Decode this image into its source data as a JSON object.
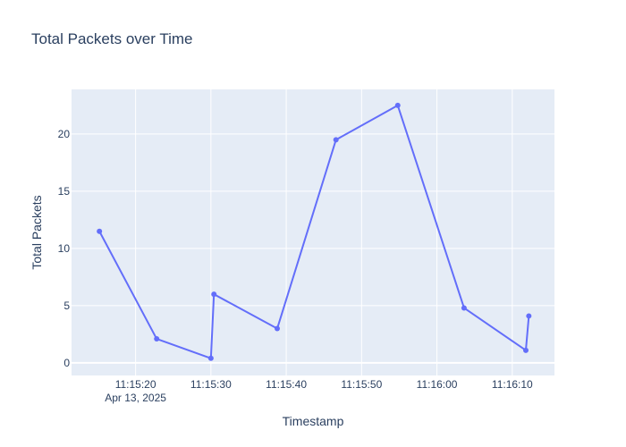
{
  "chart_data": {
    "type": "line",
    "title": "Total Packets over Time",
    "xlabel": "Timestamp",
    "ylabel": "Total Packets",
    "x": [
      "11:15:15.2",
      "11:15:22.8",
      "11:15:30.0",
      "11:15:30.4",
      "11:15:38.8",
      "11:15:46.6",
      "11:15:54.8",
      "11:16:03.6",
      "11:16:11.8",
      "11:16:12.2"
    ],
    "series": [
      {
        "values": [
          11.5,
          2.1,
          0.4,
          6.0,
          3.0,
          19.5,
          22.5,
          4.8,
          1.1,
          4.1
        ]
      }
    ],
    "xlim": [
      "11:15:11.5",
      "11:16:15.6"
    ],
    "ylim": [
      -1.1,
      23.9
    ],
    "x_ticks": [
      {
        "value": "11:15:20",
        "label": "11:15:20",
        "sublabel": "Apr 13, 2025"
      },
      {
        "value": "11:15:30",
        "label": "11:15:30"
      },
      {
        "value": "11:15:40",
        "label": "11:15:40"
      },
      {
        "value": "11:15:50",
        "label": "11:15:50"
      },
      {
        "value": "11:16:00",
        "label": "11:16:00"
      },
      {
        "value": "11:16:10",
        "label": "11:16:10"
      }
    ],
    "y_ticks": [
      0,
      5,
      10,
      15,
      20
    ],
    "grid": true,
    "colors": {
      "line": "#636efa",
      "plot_bg": "#e5ecf6",
      "grid": "#ffffff",
      "text": "#2a3f5f"
    }
  }
}
